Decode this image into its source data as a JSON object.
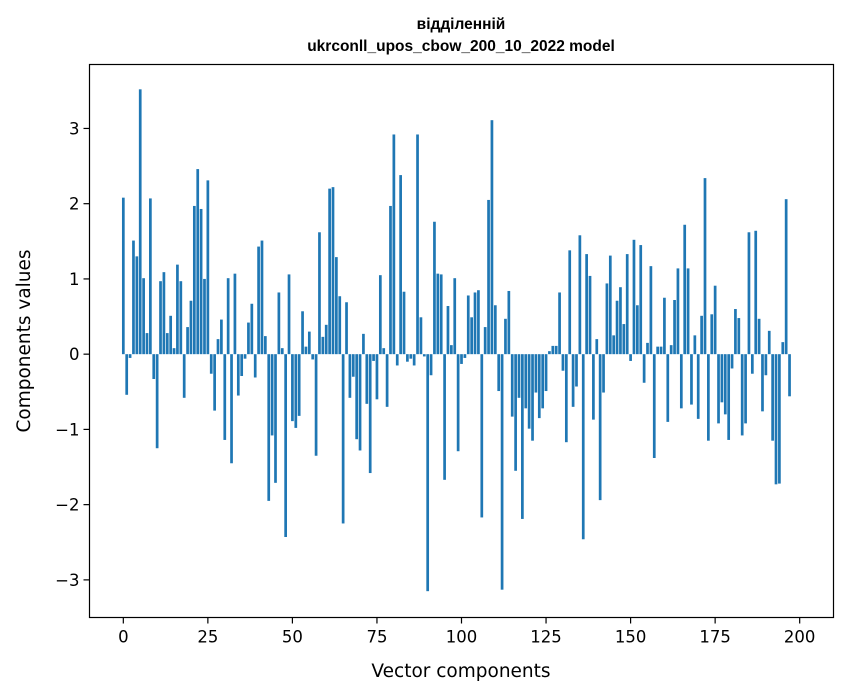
{
  "chart_data": {
    "type": "bar",
    "title_line1": "відділенній",
    "title_line2": "ukrconll_upos_cbow_200_10_2022 model",
    "xlabel": "Vector components",
    "ylabel": "Components values",
    "xlim": [
      -10,
      210
    ],
    "ylim": [
      -3.5,
      3.85
    ],
    "xticks": [
      0,
      25,
      50,
      75,
      100,
      125,
      150,
      175,
      200
    ],
    "yticks": [
      -3,
      -2,
      -1,
      0,
      1,
      2,
      3
    ],
    "xtick_labels": [
      "0",
      "25",
      "50",
      "75",
      "100",
      "125",
      "150",
      "175",
      "200"
    ],
    "ytick_labels": [
      "−3",
      "−2",
      "−1",
      "0",
      "1",
      "2",
      "3"
    ],
    "bar_color": "#1f77b4",
    "grid": false,
    "values": [
      2.08,
      -0.54,
      -0.05,
      1.51,
      1.3,
      3.52,
      1.01,
      0.28,
      2.07,
      -0.33,
      -1.25,
      0.97,
      1.09,
      0.28,
      0.51,
      0.08,
      1.19,
      0.97,
      -0.58,
      0.36,
      0.71,
      1.97,
      2.46,
      1.93,
      1.0,
      2.31,
      -0.26,
      -0.75,
      0.2,
      0.46,
      -1.14,
      1.01,
      -1.45,
      1.07,
      -0.55,
      -0.29,
      -0.06,
      0.42,
      0.67,
      -0.31,
      1.43,
      1.51,
      0.24,
      -1.95,
      -1.08,
      -1.71,
      0.82,
      0.08,
      -2.43,
      1.06,
      -0.89,
      -0.98,
      -0.82,
      0.57,
      0.1,
      0.3,
      -0.07,
      -1.35,
      1.62,
      0.23,
      0.39,
      2.2,
      2.22,
      1.29,
      0.77,
      -2.25,
      0.69,
      -0.58,
      -0.3,
      -1.13,
      -1.28,
      0.27,
      -0.66,
      -1.58,
      -0.09,
      -0.6,
      1.05,
      0.08,
      -0.7,
      1.97,
      2.92,
      -0.15,
      2.38,
      0.83,
      -0.1,
      -0.06,
      -0.15,
      2.92,
      0.49,
      -0.03,
      -3.15,
      -0.28,
      1.76,
      1.07,
      1.06,
      -1.67,
      0.64,
      0.12,
      1.01,
      -1.29,
      -0.13,
      -0.05,
      0.78,
      0.49,
      0.82,
      0.85,
      -2.17,
      0.36,
      2.05,
      3.11,
      0.65,
      -0.49,
      -3.13,
      0.47,
      0.84,
      -0.83,
      -1.55,
      -0.58,
      -2.19,
      -0.72,
      -0.99,
      -1.15,
      -0.51,
      -0.85,
      -0.72,
      -0.49,
      0.04,
      0.11,
      0.11,
      0.82,
      -0.22,
      -1.17,
      1.38,
      -0.7,
      -0.43,
      1.58,
      -2.46,
      1.33,
      1.04,
      -0.87,
      0.2,
      -1.94,
      -0.51,
      0.94,
      1.31,
      0.25,
      0.71,
      0.89,
      0.4,
      1.33,
      -0.09,
      1.52,
      0.65,
      1.45,
      -0.38,
      0.15,
      1.17,
      -1.38,
      0.1,
      0.1,
      0.75,
      -0.9,
      0.12,
      0.72,
      1.14,
      -0.72,
      1.72,
      1.14,
      -0.67,
      0.25,
      -0.86,
      0.51,
      2.34,
      -1.15,
      0.53,
      0.91,
      -0.92,
      -0.64,
      -0.8,
      -1.14,
      -0.19,
      0.6,
      0.48,
      -1.08,
      -0.92,
      1.62,
      -0.26,
      1.64,
      0.47,
      -0.76,
      -0.28,
      0.31,
      -1.15,
      -1.73,
      -1.72,
      0.16,
      2.06,
      -0.56
    ]
  }
}
